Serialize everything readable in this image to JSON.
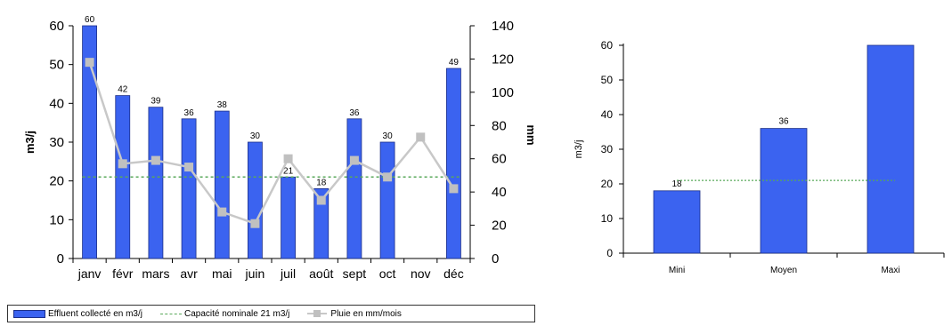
{
  "chart_data": [
    {
      "type": "bar",
      "categories": [
        "janv",
        "févr",
        "mars",
        "avr",
        "mai",
        "juin",
        "juil",
        "août",
        "sept",
        "oct",
        "nov",
        "déc"
      ],
      "series": [
        {
          "name": "Effluent collecté en m3/j",
          "type": "bar",
          "axis": "left",
          "values": [
            60,
            42,
            39,
            36,
            38,
            30,
            21,
            18,
            36,
            30,
            null,
            49
          ],
          "labels": [
            "60",
            "42",
            "39",
            "36",
            "38",
            "30",
            "21",
            "18",
            "36",
            "30",
            "",
            "49"
          ]
        },
        {
          "name": "Capacité nominale 21 m3/j",
          "type": "line",
          "axis": "left",
          "style": "dashed",
          "values": [
            21,
            21,
            21,
            21,
            21,
            21,
            21,
            21,
            21,
            21,
            21,
            21
          ]
        },
        {
          "name": "Pluie en mm/mois",
          "type": "line",
          "axis": "right",
          "values": [
            118,
            57,
            59,
            55,
            28,
            21,
            60,
            35,
            59,
            49,
            73,
            42
          ]
        }
      ],
      "ylabel": "m3/j",
      "y2label": "mm",
      "ylim": [
        0,
        60
      ],
      "y2lim": [
        0,
        140
      ],
      "yticks": [
        "0",
        "10",
        "20",
        "30",
        "40",
        "50",
        "60"
      ],
      "y2ticks": [
        "0",
        "20",
        "40",
        "60",
        "80",
        "100",
        "120",
        "140"
      ],
      "legend_position": "bottom",
      "grid": false
    },
    {
      "type": "bar",
      "categories": [
        "Mini",
        "Moyen",
        "Maxi"
      ],
      "series": [
        {
          "type": "bar",
          "values": [
            18,
            36,
            60
          ],
          "labels": [
            "18",
            "36",
            ""
          ]
        },
        {
          "type": "line",
          "style": "dashed",
          "values": [
            21,
            21,
            21
          ]
        }
      ],
      "ylabel": "m3/j",
      "ylim": [
        0,
        60
      ],
      "yticks": [
        "0",
        "10",
        "20",
        "30",
        "40",
        "50",
        "60"
      ],
      "grid": false
    }
  ],
  "colors": {
    "bar": "#3b63f0",
    "bar_edge": "#1c2f8a",
    "capacity_line": "#59a85a",
    "rain_line": "#c8c8c8",
    "rain_marker": "#c0c0c0"
  }
}
